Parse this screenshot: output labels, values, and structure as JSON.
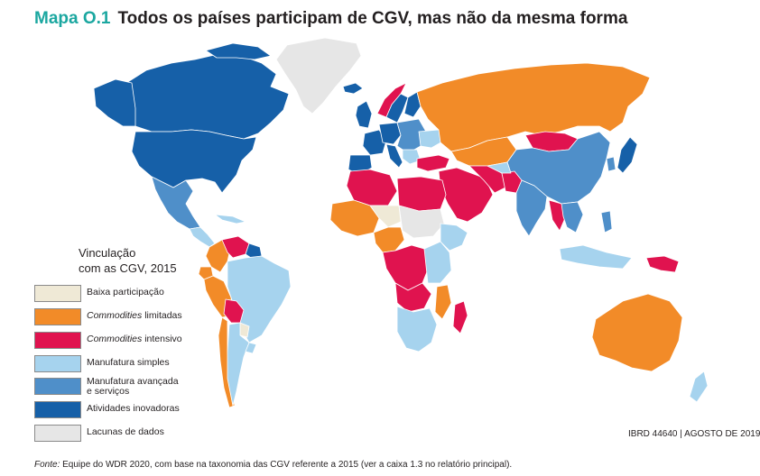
{
  "title": {
    "number": "Mapa O.1",
    "text": "Todos os países participam de CGV, mas não da mesma forma"
  },
  "legend": {
    "title_line1": "Vinculação",
    "title_line2": "com as CGV, 2015",
    "items": [
      {
        "label": "Baixa participação",
        "italic_part": "",
        "color": "#efe9d6"
      },
      {
        "label": " limitadas",
        "italic_part": "Commodities",
        "color": "#f28b28"
      },
      {
        "label": " intensivo",
        "italic_part": "Commodities",
        "color": "#e0134f"
      },
      {
        "label": "Manufatura simples",
        "italic_part": "",
        "color": "#a6d3ee"
      },
      {
        "label_line1": "Manufatura avançada",
        "label_line2": "e serviços",
        "italic_part": "",
        "color": "#4f8fc9"
      },
      {
        "label": "Atividades inovadoras",
        "italic_part": "",
        "color": "#1660a8"
      },
      {
        "label": "Lacunas de dados",
        "italic_part": "",
        "color": "#e6e6e6"
      }
    ]
  },
  "ibrd": "IBRD 44640 | AGOSTO DE 2019",
  "source": {
    "label": "Fonte:",
    "text": " Equipe do WDR 2020, com base na taxonomia das CGV referente a 2015 (ver a caixa 1.3 no relatório principal)."
  },
  "colors": {
    "low": "#efe9d6",
    "limited": "#f28b28",
    "intensive": "#e0134f",
    "simple": "#a6d3ee",
    "advanced": "#4f8fc9",
    "innovative": "#1660a8",
    "nodata": "#e6e6e6",
    "border": "#ffffff",
    "title_accent": "#1ba7a0"
  }
}
